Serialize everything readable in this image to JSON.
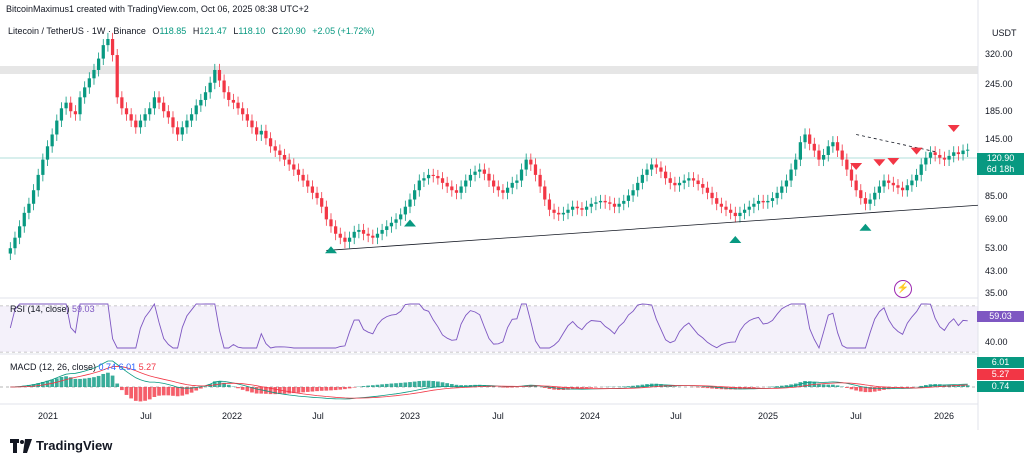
{
  "header": {
    "attribution": "BitcoinMaximus1 created with TradingView.com, Oct 06, 2025 08:38 UTC+2"
  },
  "symbol": {
    "name": "Litecoin / TetherUS · 1W · Binance",
    "open_label": "O",
    "open": "118.85",
    "high_label": "H",
    "high": "121.47",
    "low_label": "L",
    "low": "118.10",
    "close_label": "C",
    "close": "120.90",
    "change": "+2.05 (+1.72%)"
  },
  "price_axis": {
    "currency": "USDT",
    "current_price": "120.90",
    "countdown": "6d 18h"
  },
  "rsi": {
    "label": "RSI (14, close)",
    "value": "59.03"
  },
  "macd": {
    "label": "MACD (12, 26, close)",
    "v1": "0.74",
    "v2": "6.01",
    "v3": "5.27",
    "badges": [
      "6.01",
      "5.27",
      "0.74"
    ]
  },
  "footer": {
    "brand": "TradingView"
  },
  "colors": {
    "up": "#089981",
    "down": "#f23645",
    "rsi": "#7e57c2",
    "macd": "#2962ff",
    "signal": "#f23645"
  },
  "chart_data": {
    "type": "candlestick",
    "title": "Litecoin / TetherUS · 1W · Binance",
    "y_scale": "log",
    "price_ticks": [
      "320.00",
      "245.00",
      "185.00",
      "145.00",
      "85.00",
      "69.00",
      "53.00",
      "43.00",
      "35.00"
    ],
    "rsi_ticks": [
      "40.00"
    ],
    "x_ticks": [
      "2021",
      "Jul",
      "2022",
      "Jul",
      "2023",
      "Jul",
      "2024",
      "Jul",
      "2025",
      "Jul",
      "2026"
    ],
    "closes": [
      47,
      52,
      58,
      66,
      72,
      82,
      95,
      110,
      125,
      140,
      160,
      180,
      190,
      175,
      170,
      200,
      220,
      240,
      260,
      290,
      330,
      350,
      300,
      200,
      180,
      170,
      160,
      150,
      160,
      170,
      180,
      200,
      190,
      175,
      165,
      150,
      140,
      150,
      160,
      170,
      185,
      195,
      210,
      230,
      260,
      235,
      210,
      195,
      190,
      180,
      170,
      160,
      150,
      140,
      145,
      135,
      125,
      120,
      115,
      110,
      105,
      100,
      95,
      90,
      85,
      80,
      76,
      70,
      62,
      58,
      54,
      52,
      50,
      52,
      55,
      56,
      54,
      53,
      52,
      54,
      56,
      58,
      60,
      62,
      65,
      70,
      75,
      82,
      90,
      92,
      95,
      94,
      92,
      88,
      85,
      82,
      80,
      85,
      90,
      95,
      98,
      100,
      96,
      90,
      85,
      82,
      80,
      84,
      88,
      90,
      100,
      110,
      105,
      95,
      85,
      75,
      68,
      66,
      65,
      66,
      68,
      70,
      69,
      68,
      70,
      72,
      73,
      74,
      73,
      72,
      70,
      72,
      74,
      78,
      82,
      88,
      95,
      100,
      105,
      102,
      98,
      92,
      88,
      86,
      88,
      90,
      92,
      90,
      87,
      84,
      80,
      76,
      72,
      70,
      68,
      66,
      64,
      66,
      68,
      70,
      72,
      74,
      73,
      74,
      76,
      80,
      85,
      90,
      100,
      110,
      130,
      140,
      128,
      120,
      110,
      115,
      125,
      130,
      120,
      110,
      100,
      90,
      82,
      76,
      72,
      75,
      80,
      85,
      90,
      88,
      86,
      84,
      82,
      86,
      90,
      95,
      105,
      112,
      118,
      115,
      112,
      110,
      114,
      118,
      116,
      120,
      121
    ],
    "annotations": {
      "resistance_band": [
        270,
        290
      ],
      "horizontal_level": 121,
      "ascending_support": {
        "start": [
          68,
          46
        ],
        "end": [
          207,
          71
        ]
      },
      "descending_resistance": {
        "start": [
          182,
          140
        ],
        "end": [
          207,
          118
        ]
      },
      "sell_markers": [
        182,
        187,
        190,
        195,
        203
      ],
      "buy_markers": [
        69,
        86,
        156,
        184
      ]
    },
    "rsi_last": 59.03,
    "macd_last": {
      "macd": 6.01,
      "signal": 5.27,
      "hist": 0.74
    },
    "grid": false
  }
}
